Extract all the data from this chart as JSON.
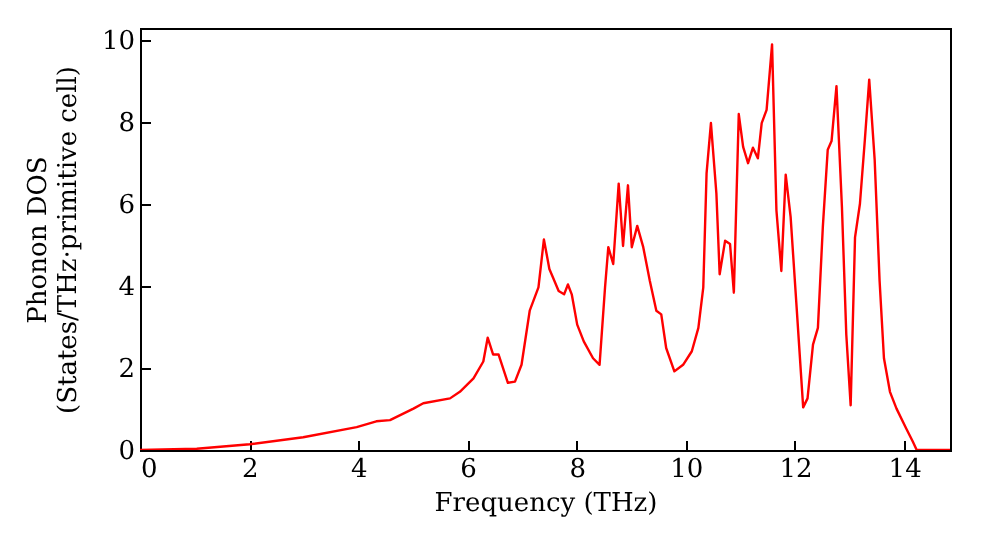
{
  "chart_data": {
    "type": "line",
    "xlabel": "Frequency (THz)",
    "ylabel": "Phonon DOS\n(States/THz·primitive cell)",
    "xlim": [
      0,
      14.84
    ],
    "ylim": [
      0,
      10.3
    ],
    "xticks": [
      0,
      2,
      4,
      6,
      8,
      10,
      12,
      14
    ],
    "yticks": [
      0,
      2,
      4,
      6,
      8,
      10
    ],
    "grid": false,
    "line_style": "solid",
    "marker": "none",
    "x": [
      0,
      1.04,
      2.01,
      2.99,
      3.97,
      4.33,
      4.58,
      5.01,
      5.19,
      5.68,
      5.86,
      6.11,
      6.29,
      6.37,
      6.47,
      6.57,
      6.74,
      6.87,
      6.99,
      7.14,
      7.3,
      7.4,
      7.5,
      7.57,
      7.67,
      7.77,
      7.84,
      7.91,
      8.01,
      8.13,
      8.3,
      8.42,
      8.52,
      8.58,
      8.67,
      8.77,
      8.85,
      8.94,
      9.01,
      9.11,
      9.22,
      9.34,
      9.46,
      9.55,
      9.64,
      9.79,
      9.95,
      10.11,
      10.23,
      10.32,
      10.38,
      10.46,
      10.56,
      10.62,
      10.72,
      10.81,
      10.88,
      10.97,
      11.05,
      11.14,
      11.23,
      11.32,
      11.39,
      11.48,
      11.58,
      11.66,
      11.75,
      11.83,
      11.92,
      12.03,
      12.15,
      12.23,
      12.33,
      12.42,
      12.51,
      12.6,
      12.67,
      12.76,
      12.86,
      12.94,
      13.02,
      13.1,
      13.19,
      13.28,
      13.36,
      13.46,
      13.55,
      13.63,
      13.74,
      13.86,
      14.04,
      14.16,
      14.23,
      14.84
    ],
    "series": [
      {
        "color": "#ff0000",
        "values": [
          0,
          0.03,
          0.14,
          0.31,
          0.56,
          0.7,
          0.73,
          1.01,
          1.14,
          1.26,
          1.42,
          1.75,
          2.16,
          2.74,
          2.33,
          2.33,
          1.64,
          1.67,
          2.08,
          3.4,
          3.97,
          5.14,
          4.42,
          4.2,
          3.88,
          3.8,
          4.04,
          3.8,
          3.06,
          2.65,
          2.24,
          2.08,
          3.97,
          4.95,
          4.54,
          6.5,
          4.98,
          6.46,
          4.95,
          5.47,
          4.95,
          4.13,
          3.4,
          3.31,
          2.49,
          1.92,
          2.08,
          2.41,
          2.98,
          3.97,
          6.75,
          7.98,
          6.26,
          4.29,
          5.11,
          5.03,
          3.84,
          8.2,
          7.4,
          7.0,
          7.38,
          7.12,
          7.98,
          8.3,
          9.9,
          5.85,
          4.37,
          6.72,
          5.69,
          3.48,
          1.04,
          1.26,
          2.57,
          2.98,
          5.44,
          7.33,
          7.54,
          8.88,
          5.93,
          2.82,
          1.09,
          5.19,
          6.01,
          7.57,
          9.04,
          7.08,
          4.13,
          2.24,
          1.42,
          1.01,
          0.52,
          0.2,
          0,
          0
        ]
      }
    ]
  }
}
